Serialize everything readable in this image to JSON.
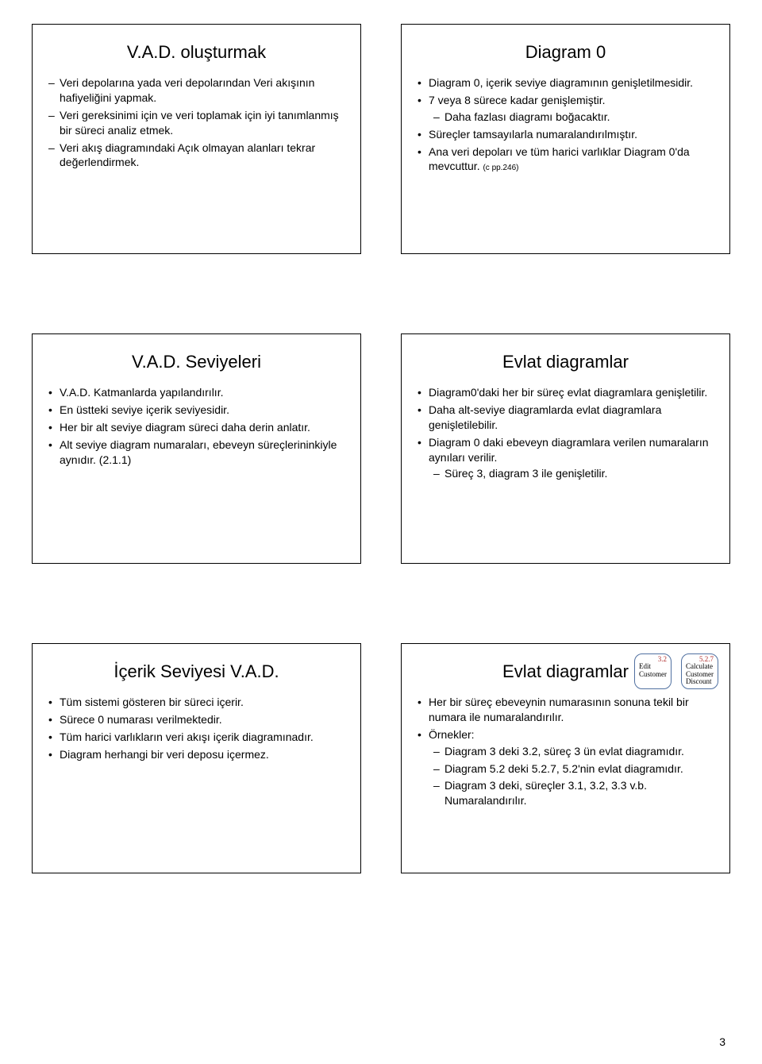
{
  "page_number": "3",
  "slides": [
    {
      "title": "V.A.D. oluşturmak",
      "items": [
        {
          "type": "dash",
          "text": "Veri depolarına yada veri depolarından Veri akışının hafiyeliğini yapmak."
        },
        {
          "type": "dash",
          "text": "Veri gereksinimi için ve veri toplamak için iyi tanımlanmış bir süreci analiz etmek."
        },
        {
          "type": "dash",
          "text": "Veri akış diagramındaki Açık olmayan alanları tekrar değerlendirmek."
        }
      ]
    },
    {
      "title": "Diagram 0",
      "items": [
        {
          "type": "bullet",
          "text": "Diagram 0, içerik seviye diagramının genişletilmesidir."
        },
        {
          "type": "bullet",
          "text": "7 veya 8 sürece kadar genişlemiştir.",
          "children": [
            {
              "type": "dash",
              "text": "Daha fazlası diagramı boğacaktır."
            }
          ]
        },
        {
          "type": "bullet",
          "text": "Süreçler tamsayılarla numaralandırılmıştır."
        },
        {
          "type": "bullet",
          "html": "Ana veri depoları ve tüm harici varlıklar Diagram 0'da mevcuttur. <span class=\"small\">(c pp.246)</span>"
        }
      ]
    },
    {
      "title": "V.A.D. Seviyeleri",
      "items": [
        {
          "type": "bullet",
          "text": "V.A.D. Katmanlarda yapılandırılır."
        },
        {
          "type": "bullet",
          "text": "En üstteki seviye içerik seviyesidir."
        },
        {
          "type": "bullet",
          "text": "Her bir alt seviye diagram süreci daha derin anlatır."
        },
        {
          "type": "bullet",
          "text": "Alt seviye diagram numaraları, ebeveyn süreçlerininkiyle aynıdır. (2.1.1)"
        }
      ]
    },
    {
      "title": "Evlat diagramlar",
      "items": [
        {
          "type": "bullet",
          "text": "Diagram0'daki her bir süreç evlat diagramlara genişletilir."
        },
        {
          "type": "bullet",
          "text": "Daha alt-seviye diagramlarda evlat diagramlara genişletilebilir."
        },
        {
          "type": "bullet",
          "text": "Diagram 0 daki ebeveyn diagramlara verilen numaraların aynıları verilir.",
          "children": [
            {
              "type": "dash",
              "text": "Süreç 3, diagram 3 ile genişletilir."
            }
          ]
        }
      ]
    },
    {
      "title": "İçerik Seviyesi V.A.D.",
      "items": [
        {
          "type": "bullet",
          "text": "Tüm sistemi gösteren bir süreci içerir."
        },
        {
          "type": "bullet",
          "text": "Sürece 0 numarası verilmektedir."
        },
        {
          "type": "bullet",
          "text": "Tüm harici varlıkların veri akışı içerik diagramınadır."
        },
        {
          "type": "bullet",
          "text": "Diagram herhangi bir veri deposu içermez."
        }
      ]
    },
    {
      "title": "Evlat diagramlar",
      "shapes": [
        {
          "num": "3.2",
          "label": "Edit\nCustomer"
        },
        {
          "num": "5.2.7",
          "label": "Calculate\nCustomer\nDiscount"
        }
      ],
      "items": [
        {
          "type": "bullet",
          "text": "Her bir süreç ebeveynin numarasının sonuna tekil bir numara ile numaralandırılır."
        },
        {
          "type": "bullet",
          "text": "Örnekler:",
          "children": [
            {
              "type": "dash",
              "text": "Diagram 3 deki 3.2, süreç 3 ün evlat diagramıdır."
            },
            {
              "type": "dash",
              "text": "Diagram 5.2 deki 5.2.7, 5.2'nin evlat diagramıdır."
            },
            {
              "type": "dash",
              "text": "Diagram 3 deki, süreçler 3.1, 3.2, 3.3 v.b. Numaralandırılır."
            }
          ]
        }
      ]
    }
  ]
}
